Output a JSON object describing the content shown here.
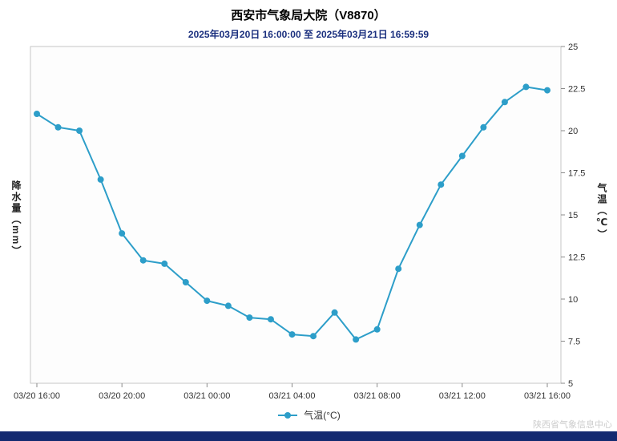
{
  "header": {
    "title": "西安市气象局大院（V8870）",
    "subtitle": "2025年03月20日 16:00:00 至 2025年03月21日 16:59:59"
  },
  "chart_data": {
    "type": "line",
    "title": "西安市气象局大院（V8870）",
    "subtitle": "2025年03月20日 16:00:00 至 2025年03月21日 16:59:59",
    "left_axis_label": "降水量（mm）",
    "right_axis_label": "气温（℃）",
    "x_tick_labels": [
      "03/20 16:00",
      "03/20 20:00",
      "03/21 00:00",
      "03/21 04:00",
      "03/21 08:00",
      "03/21 12:00",
      "03/21 16:00"
    ],
    "x_tick_hours": [
      0,
      4,
      8,
      12,
      16,
      20,
      24
    ],
    "y_ticks": [
      5,
      7.5,
      10,
      12.5,
      15,
      17.5,
      20,
      22.5,
      25
    ],
    "ylim": [
      5,
      25
    ],
    "grid": false,
    "legend_position": "bottom",
    "series": [
      {
        "name": "气温(°C)",
        "color": "#2D9EC9",
        "hours": [
          0,
          1,
          2,
          3,
          4,
          5,
          6,
          7,
          8,
          9,
          10,
          11,
          12,
          13,
          14,
          15,
          16,
          17,
          18,
          19,
          20,
          21,
          22,
          23,
          24
        ],
        "values": [
          21.0,
          20.2,
          20.0,
          17.1,
          13.9,
          12.3,
          12.1,
          11.0,
          9.9,
          9.6,
          8.9,
          8.8,
          7.9,
          7.8,
          9.2,
          7.6,
          8.2,
          11.8,
          14.4,
          16.8,
          18.5,
          20.2,
          21.7,
          22.6,
          22.4
        ]
      }
    ]
  },
  "legend": {
    "label": "气温(°C)",
    "color": "#2D9EC9"
  },
  "footer": {
    "watermark": "陕西省气象信息中心"
  },
  "colors": {
    "accent": "#2D9EC9",
    "subtitle_text": "#1A2F7E",
    "bottom_bar": "#132A70",
    "watermark_text": "#CCCCCC",
    "plot_border": "#C6C6C6"
  }
}
